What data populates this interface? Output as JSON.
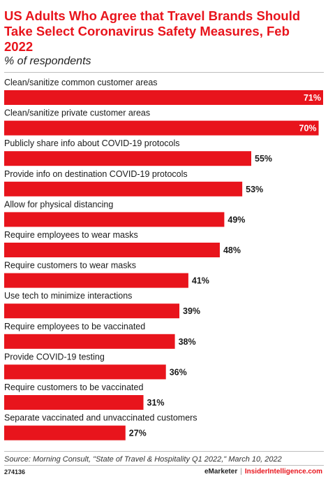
{
  "header": {
    "title": "US Adults Who Agree that Travel Brands Should Take Select Coronavirus Safety Measures, Feb 2022",
    "subtitle": "% of respondents"
  },
  "chart_data": {
    "type": "bar",
    "orientation": "horizontal",
    "categories": [
      "Clean/sanitize common customer areas",
      "Clean/sanitize private customer areas",
      "Publicly share info about COVID-19 protocols",
      "Provide info on destination COVID-19 protocols",
      "Allow for physical distancing",
      "Require employees to wear masks",
      "Require customers to wear masks",
      "Use tech to minimize interactions",
      "Require employees to be vaccinated",
      "Provide COVID-19 testing",
      "Require customers to be vaccinated",
      "Separate vaccinated and unvaccinated customers"
    ],
    "values": [
      71,
      70,
      55,
      53,
      49,
      48,
      41,
      39,
      38,
      36,
      31,
      27
    ],
    "value_labels": [
      "71%",
      "70%",
      "55%",
      "53%",
      "49%",
      "48%",
      "41%",
      "39%",
      "38%",
      "36%",
      "31%",
      "27%"
    ],
    "xlim": [
      0,
      71
    ],
    "bar_color": "#e8141c",
    "grid": false,
    "legend": "none"
  },
  "footer": {
    "source": "Source: Morning Consult, \"State of Travel & Hospitality Q1 2022,\" March 10, 2022",
    "chart_id": "274136",
    "brand_left": "eMarketer",
    "brand_separator": "|",
    "brand_right": "InsiderIntelligence.com"
  }
}
